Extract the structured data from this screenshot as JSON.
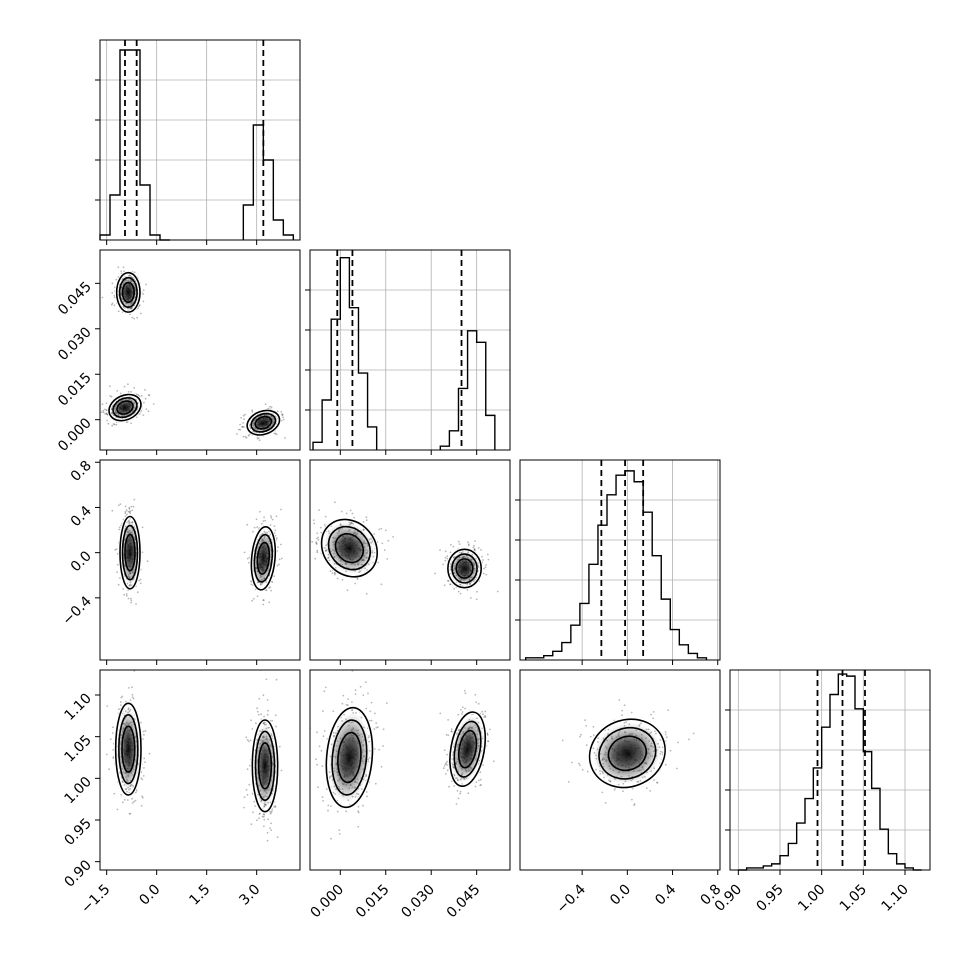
{
  "chart_data": {
    "type": "corner",
    "title": "",
    "parameters": [
      {
        "range": [
          -1.7,
          4.3
        ],
        "ticks": [
          -1.5,
          0.0,
          1.5,
          3.0
        ],
        "tick_labels": [
          "−1.5",
          "0.0",
          "1.5",
          "3.0"
        ],
        "quantiles": [
          -0.95,
          -0.6,
          3.2
        ]
      },
      {
        "range": [
          -0.01,
          0.056
        ],
        "ticks": [
          0.0,
          0.015,
          0.03,
          0.045
        ],
        "tick_labels": [
          "0.000",
          "0.015",
          "0.030",
          "0.045"
        ],
        "quantiles": [
          -0.001,
          0.004,
          0.04
        ]
      },
      {
        "range": [
          -0.95,
          0.82
        ],
        "ticks": [
          -0.4,
          0.0,
          0.4,
          0.8
        ],
        "tick_labels": [
          "−0.4",
          "0.0",
          "0.4",
          "0.8"
        ],
        "quantiles": [
          -0.23,
          -0.02,
          0.14
        ]
      },
      {
        "range": [
          0.89,
          1.13
        ],
        "ticks": [
          0.9,
          0.95,
          1.0,
          1.05,
          1.1
        ],
        "tick_labels": [
          "0.90",
          "0.95",
          "1.00",
          "1.05",
          "1.10"
        ],
        "quantiles": [
          0.995,
          1.025,
          1.052
        ]
      }
    ],
    "histograms": [
      {
        "bin_width": 0.3,
        "x": [
          -1.7,
          -1.4,
          -1.1,
          -0.8,
          -0.5,
          -0.2,
          0.1,
          2.6,
          2.9,
          3.2,
          3.5,
          3.8
        ],
        "counts": [
          1,
          9,
          38,
          38,
          11,
          1,
          0,
          7,
          23,
          16,
          4,
          1
        ],
        "max": 40
      },
      {
        "bin_width": 0.003,
        "x": [
          -0.009,
          -0.006,
          -0.003,
          0.0,
          0.003,
          0.006,
          0.009,
          0.033,
          0.036,
          0.039,
          0.042,
          0.045,
          0.048
        ],
        "counts": [
          2,
          13,
          34,
          50,
          37,
          20,
          6,
          1,
          5,
          16,
          31,
          28,
          9
        ],
        "max": 52
      },
      {
        "bin_width": 0.08,
        "x": [
          -0.9,
          -0.82,
          -0.74,
          -0.66,
          -0.58,
          -0.5,
          -0.42,
          -0.34,
          -0.26,
          -0.18,
          -0.1,
          -0.02,
          0.06,
          0.14,
          0.22,
          0.3,
          0.38,
          0.46,
          0.54,
          0.62
        ],
        "counts": [
          1,
          1,
          2,
          4,
          8,
          16,
          26,
          44,
          62,
          76,
          85,
          87,
          82,
          68,
          48,
          28,
          14,
          7,
          3,
          1
        ],
        "max": 92
      },
      {
        "bin_width": 0.01,
        "x": [
          0.9,
          0.91,
          0.92,
          0.93,
          0.94,
          0.95,
          0.96,
          0.97,
          0.98,
          0.99,
          1.0,
          1.01,
          1.02,
          1.03,
          1.04,
          1.05,
          1.06,
          1.07,
          1.08,
          1.09,
          1.1,
          1.11
        ],
        "counts": [
          0,
          1,
          1,
          2,
          3,
          7,
          13,
          23,
          35,
          50,
          70,
          86,
          96,
          95,
          79,
          58,
          40,
          20,
          8,
          3,
          1,
          0
        ],
        "max": 98
      }
    ],
    "blobs": {
      "1-0": [
        {
          "cx": -0.85,
          "cy": 0.042,
          "rx": 0.35,
          "ry": 0.0065,
          "rot": 0
        },
        {
          "cx": -0.95,
          "cy": 0.004,
          "rx": 0.5,
          "ry": 0.004,
          "rot": -25
        },
        {
          "cx": 3.2,
          "cy": -0.001,
          "rx": 0.5,
          "ry": 0.0038,
          "rot": -20
        }
      ],
      "2-0": [
        {
          "cx": -0.8,
          "cy": 0.0,
          "rx": 0.3,
          "ry": 0.32,
          "rot": 0
        },
        {
          "cx": 3.2,
          "cy": -0.05,
          "rx": 0.35,
          "ry": 0.28,
          "rot": 5
        }
      ],
      "2-1": [
        {
          "cx": 0.003,
          "cy": 0.04,
          "rx": 0.0085,
          "ry": 0.27,
          "rot": -40
        },
        {
          "cx": 0.041,
          "cy": -0.14,
          "rx": 0.0055,
          "ry": 0.17,
          "rot": 0
        }
      ],
      "3-0": [
        {
          "cx": -0.85,
          "cy": 1.035,
          "rx": 0.38,
          "ry": 0.055,
          "rot": 0
        },
        {
          "cx": 3.25,
          "cy": 1.015,
          "rx": 0.38,
          "ry": 0.055,
          "rot": 0
        }
      ],
      "3-1": [
        {
          "cx": 0.003,
          "cy": 1.025,
          "rx": 0.0075,
          "ry": 0.06,
          "rot": 5
        },
        {
          "cx": 0.042,
          "cy": 1.035,
          "rx": 0.0055,
          "ry": 0.045,
          "rot": 10
        }
      ],
      "3-2": [
        {
          "cx": 0.0,
          "cy": 1.03,
          "rx": 0.34,
          "ry": 0.04,
          "rot": -22
        }
      ]
    }
  }
}
